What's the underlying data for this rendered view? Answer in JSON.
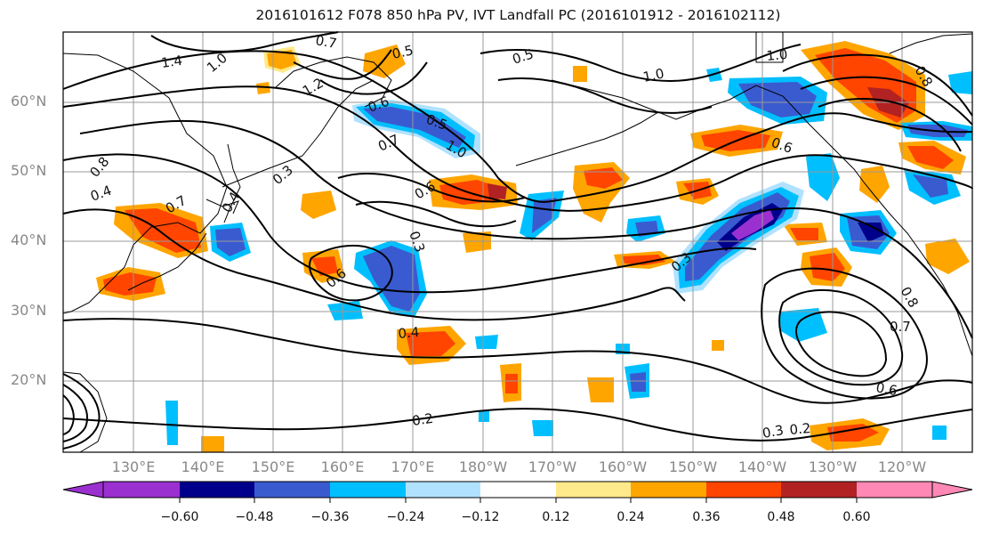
{
  "title": "2016101612 F078 850 hPa PV, IVT Landfall PC (2016101912 - 2016102112)",
  "lat_labels": [
    "60°N",
    "50°N",
    "40°N",
    "30°N",
    "20°N"
  ],
  "lon_labels": [
    "130°E",
    "140°E",
    "150°E",
    "160°E",
    "170°E",
    "180°W",
    "170°W",
    "160°W",
    "150°W",
    "140°W",
    "130°W",
    "120°W"
  ],
  "colorbar": {
    "ticks": [
      "−0.60",
      "−0.48",
      "−0.36",
      "−0.24",
      "−0.12",
      "0.12",
      "0.24",
      "0.36",
      "0.48",
      "0.60"
    ],
    "colors": [
      "#9b30d0",
      "#00008b",
      "#3a5bd0",
      "#00bfff",
      "#b0e2ff",
      "#ffffff",
      "#ffe98a",
      "#ffa500",
      "#ff4500",
      "#b22222",
      "#ff88b4"
    ]
  },
  "contour_labels": [
    "1.4",
    "1.0",
    "0.7",
    "0.5",
    "1.2",
    "0.6",
    "0.5",
    "1.0",
    "0.7",
    "0.3",
    "0.8",
    "0.4",
    "0.5",
    "1.0",
    "0.6",
    "0.4",
    "0.7",
    "0.3",
    "0.6",
    "0.3",
    "0.4",
    "0.2",
    "0.8",
    "1.0",
    "0.8",
    "0.7",
    "0.6",
    "0.3",
    "0.2",
    "0.6"
  ],
  "fill_colors": {
    "neg_light": "#b0e2ff",
    "neg_cyan": "#00bfff",
    "neg_blue": "#3a5bd0",
    "neg_navy": "#00008b",
    "neg_purple": "#9b30d0",
    "pos_yellow": "#ffe98a",
    "pos_orange": "#ffa500",
    "pos_red": "#ff4500",
    "pos_darkred": "#b22222",
    "pos_pink": "#ff88b4"
  }
}
